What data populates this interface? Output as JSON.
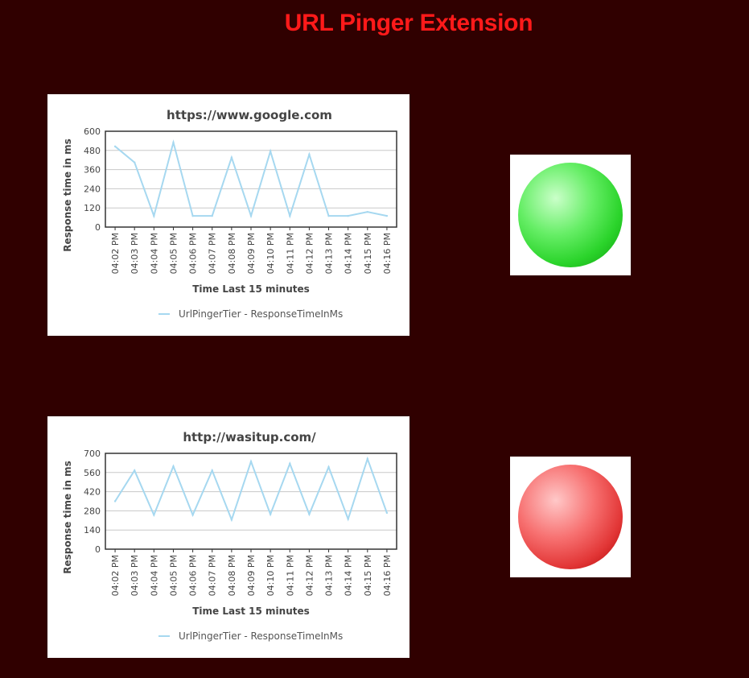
{
  "page": {
    "title": "URL Pinger Extension"
  },
  "colors": {
    "background": "#300000",
    "title": "#ff1a1a",
    "series_line": "#a6d8f0",
    "status_up": "#22cc22",
    "status_down": "#dd3333"
  },
  "chart_data": [
    {
      "type": "line",
      "title": "https://www.google.com",
      "xlabel": "Time Last 15 minutes",
      "ylabel": "Response time in ms",
      "ylim": [
        0,
        600
      ],
      "yticks": [
        0,
        120,
        240,
        360,
        480,
        600
      ],
      "categories": [
        "04:02 PM",
        "04:03 PM",
        "04:04 PM",
        "04:05 PM",
        "04:06 PM",
        "04:07 PM",
        "04:08 PM",
        "04:09 PM",
        "04:10 PM",
        "04:11 PM",
        "04:12 PM",
        "04:13 PM",
        "04:14 PM",
        "04:15 PM",
        "04:16 PM"
      ],
      "grid": true,
      "legend": "bottom",
      "series": [
        {
          "name": "UrlPingerTier - ResponseTimeInMs",
          "values": [
            505,
            405,
            70,
            530,
            70,
            70,
            435,
            70,
            475,
            70,
            455,
            70,
            70,
            95,
            70
          ]
        }
      ]
    },
    {
      "type": "line",
      "title": "http://wasitup.com/",
      "xlabel": "Time Last 15 minutes",
      "ylabel": "Response time in ms",
      "ylim": [
        0,
        700
      ],
      "yticks": [
        0,
        140,
        280,
        420,
        560,
        700
      ],
      "categories": [
        "04:02 PM",
        "04:03 PM",
        "04:04 PM",
        "04:05 PM",
        "04:06 PM",
        "04:07 PM",
        "04:08 PM",
        "04:09 PM",
        "04:10 PM",
        "04:11 PM",
        "04:12 PM",
        "04:13 PM",
        "04:14 PM",
        "04:15 PM",
        "04:16 PM"
      ],
      "grid": true,
      "legend": "bottom",
      "series": [
        {
          "name": "UrlPingerTier - ResponseTimeInMs",
          "values": [
            350,
            575,
            250,
            605,
            250,
            575,
            215,
            640,
            255,
            625,
            255,
            600,
            220,
            660,
            265
          ]
        }
      ]
    }
  ],
  "status": [
    {
      "url": "https://www.google.com",
      "state": "up",
      "icon": "green-status-orb-icon"
    },
    {
      "url": "http://wasitup.com/",
      "state": "down",
      "icon": "red-status-orb-icon"
    }
  ]
}
